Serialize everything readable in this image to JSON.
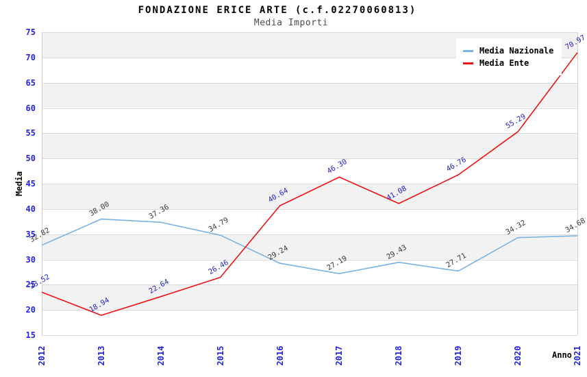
{
  "header": {
    "title": "FONDAZIONE ERICE ARTE (c.f.02270060813)",
    "subtitle": "Media Importi"
  },
  "chart_data": {
    "type": "line",
    "title": "FONDAZIONE ERICE ARTE (c.f.02270060813)",
    "subtitle": "Media Importi",
    "xlabel": "Anno",
    "ylabel": "Media",
    "categories": [
      "2012",
      "2013",
      "2014",
      "2015",
      "2016",
      "2017",
      "2018",
      "2019",
      "2020",
      "2021"
    ],
    "series": [
      {
        "name": "Media Nazionale",
        "color": "#79b2e5",
        "label_color": "#3a3a3a",
        "values": [
          32.82,
          38.0,
          37.36,
          34.79,
          29.24,
          27.19,
          29.43,
          27.71,
          34.32,
          34.68
        ]
      },
      {
        "name": "Media Ente",
        "color": "#ee1212",
        "label_color": "#2222cc",
        "values": [
          23.52,
          18.94,
          22.64,
          26.46,
          40.64,
          46.3,
          41.08,
          46.76,
          55.29,
          70.97
        ]
      }
    ],
    "ylim": [
      15,
      75
    ],
    "ytick_step": 5,
    "grid": "horizontal-bands-alternating",
    "legend_position": "top-right",
    "colors": {
      "tick_label": "#2222dd",
      "axis_title": "#000000",
      "band_gray": "#f2f2f2",
      "grid_line": "#d9d9d9",
      "plot_border": "#cfcfcf",
      "background": "#ffffff"
    }
  }
}
